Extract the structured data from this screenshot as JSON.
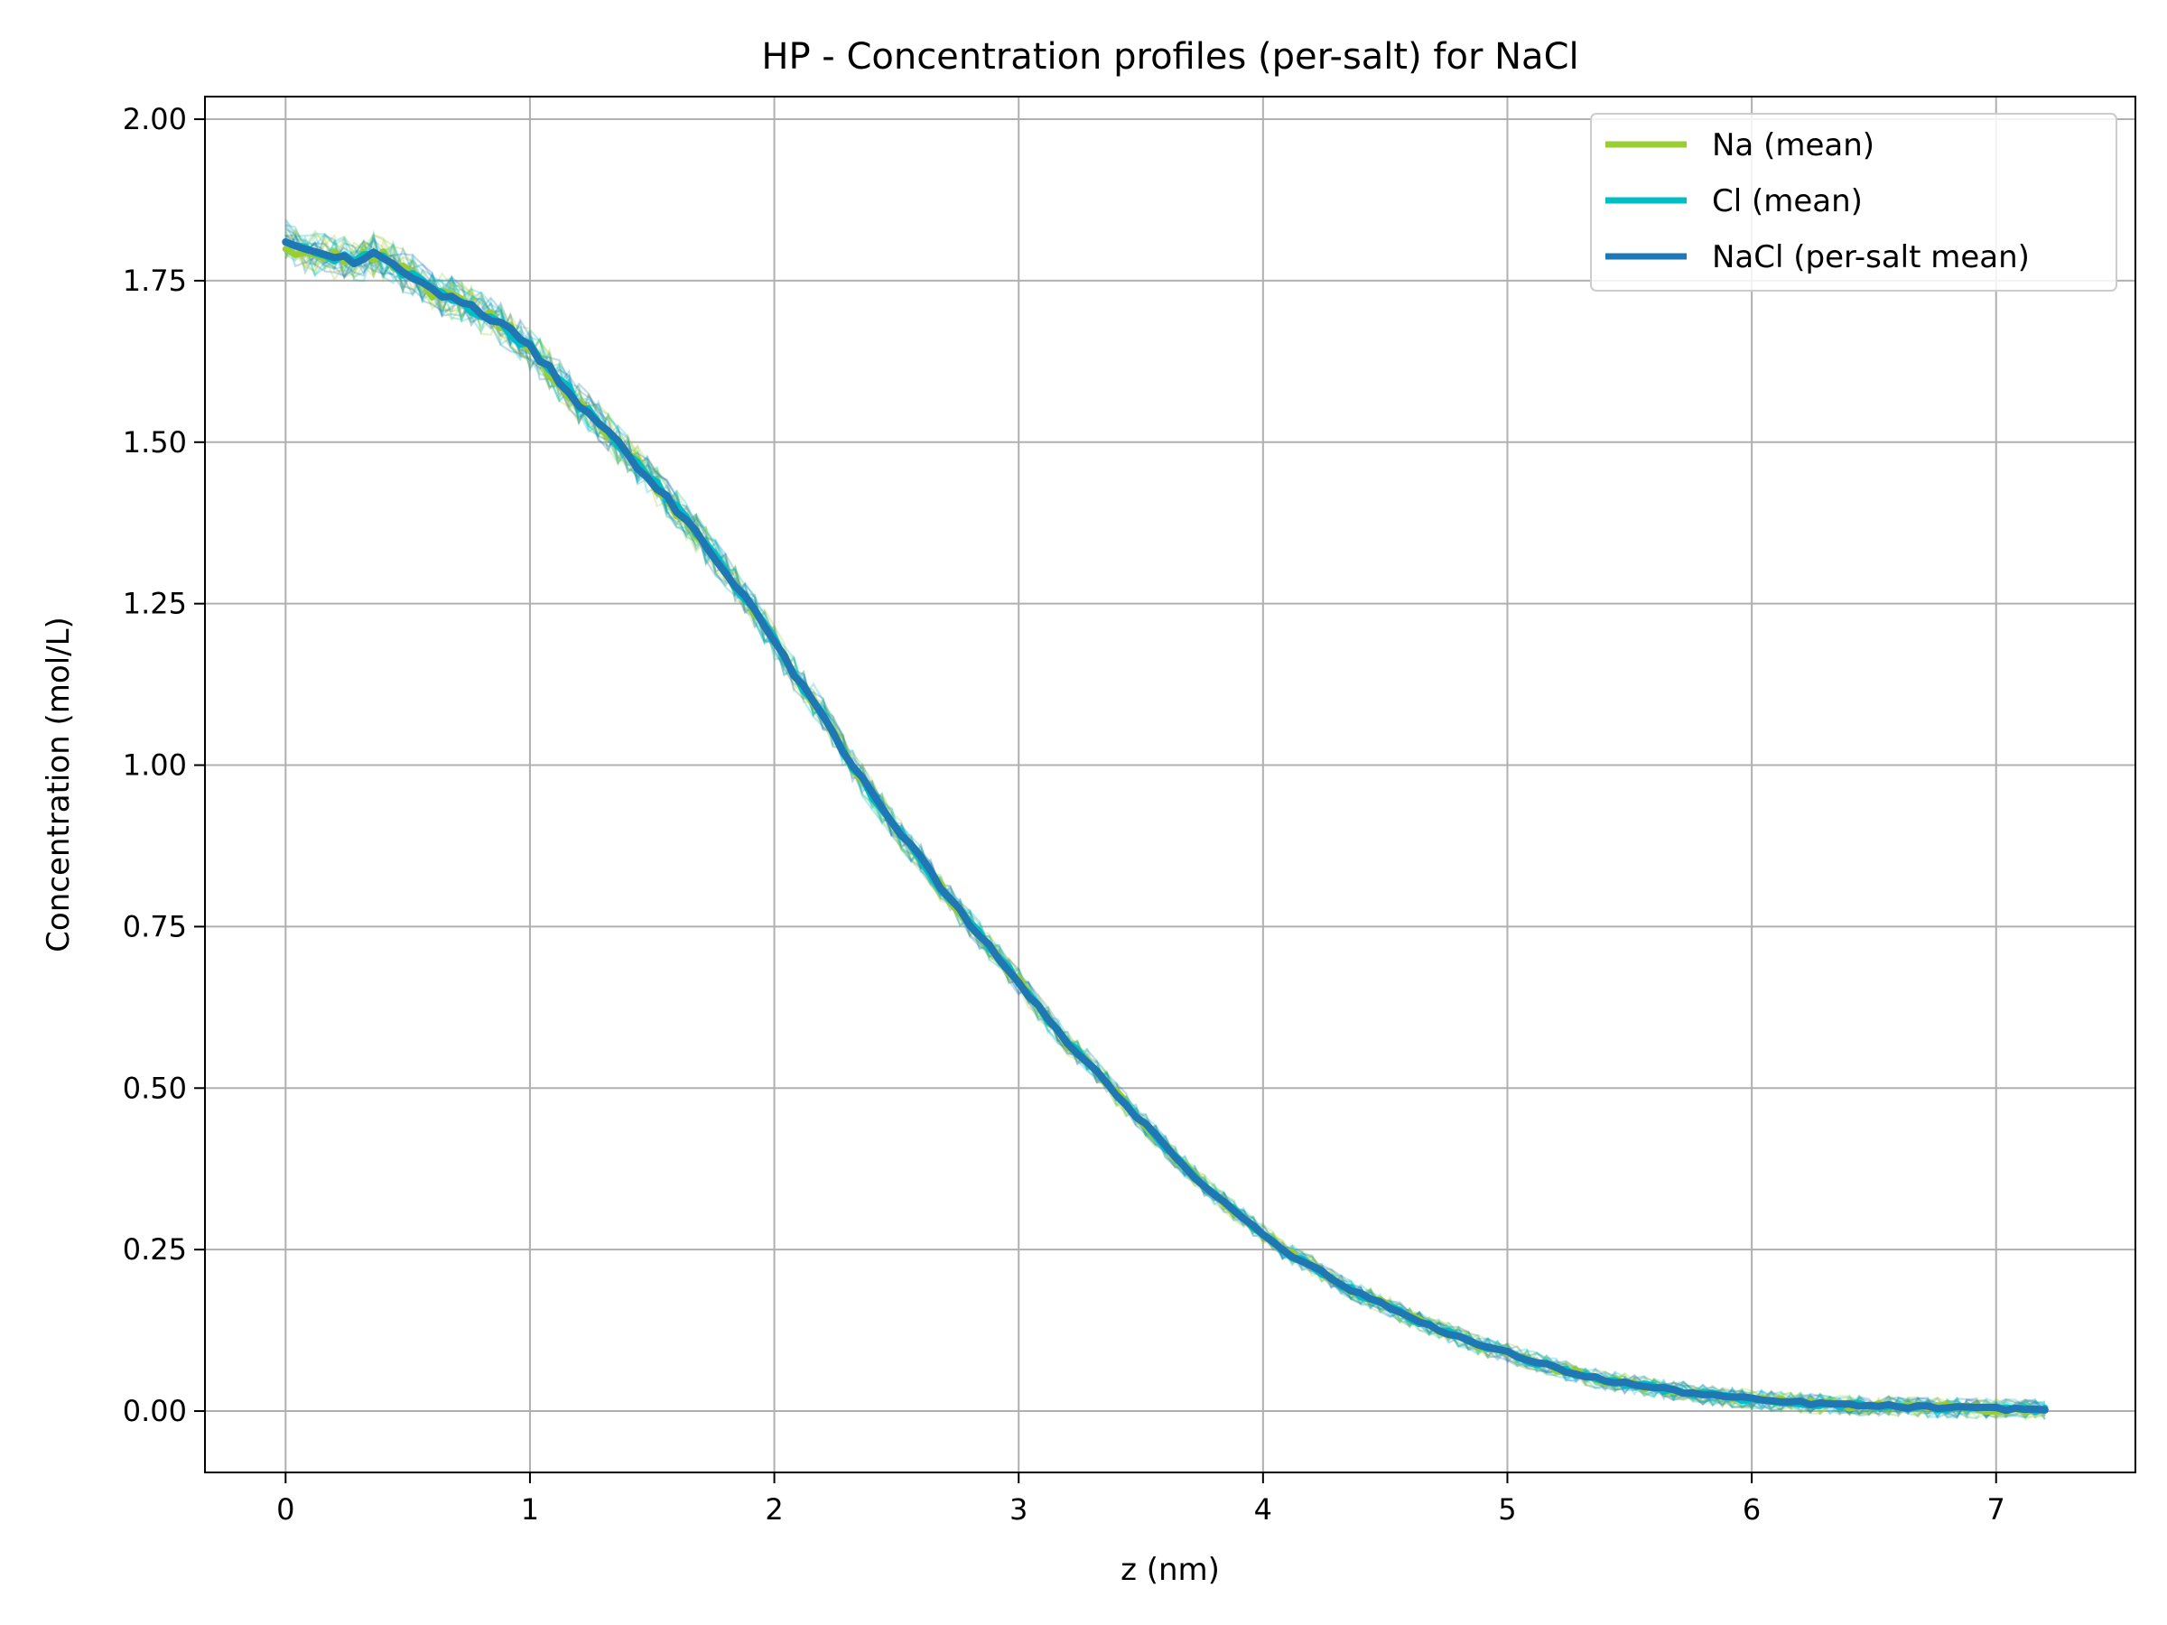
{
  "chart_data": {
    "type": "line",
    "title": "HP - Concentration profiles (per-salt) for NaCl",
    "xlabel": "z (nm)",
    "ylabel": "Concentration (mol/L)",
    "xlim": [
      -0.33,
      7.57
    ],
    "ylim": [
      -0.095,
      2.035
    ],
    "xticks": [
      0,
      1,
      2,
      3,
      4,
      5,
      6,
      7
    ],
    "yticks": [
      0.0,
      0.25,
      0.5,
      0.75,
      1.0,
      1.25,
      1.5,
      1.75,
      2.0
    ],
    "ytick_labels": [
      "0.00",
      "0.25",
      "0.50",
      "0.75",
      "1.00",
      "1.25",
      "1.50",
      "1.75",
      "2.00"
    ],
    "grid": true,
    "legend_position": "top-right",
    "colors": {
      "na": "#9acd32",
      "cl": "#00bfc4",
      "nacl": "#1f77b4",
      "grid": "#b0b0b0"
    },
    "series": [
      {
        "name": "Na (mean)",
        "color": "#9acd32",
        "line_width": "thick"
      },
      {
        "name": "Cl (mean)",
        "color": "#00bfc4",
        "line_width": "thick"
      },
      {
        "name": "NaCl (per-salt mean)",
        "color": "#1f77b4",
        "line_width": "thicker"
      }
    ],
    "main_curve": {
      "x": [
        0.0,
        0.05,
        0.1,
        0.15,
        0.2,
        0.25,
        0.3,
        0.35,
        0.4,
        0.5,
        0.6,
        0.7,
        0.8,
        0.9,
        1.0,
        1.1,
        1.2,
        1.3,
        1.4,
        1.5,
        1.6,
        1.7,
        1.8,
        1.9,
        2.0,
        2.1,
        2.2,
        2.3,
        2.4,
        2.5,
        2.6,
        2.7,
        2.8,
        2.9,
        3.0,
        3.1,
        3.2,
        3.3,
        3.4,
        3.5,
        3.6,
        3.7,
        3.8,
        3.9,
        4.0,
        4.1,
        4.2,
        4.3,
        4.4,
        4.5,
        4.6,
        4.7,
        4.8,
        4.9,
        5.0,
        5.1,
        5.2,
        5.3,
        5.4,
        5.5,
        5.6,
        5.7,
        5.8,
        5.9,
        6.0,
        6.1,
        6.2,
        6.3,
        6.4,
        6.5,
        6.6,
        6.7,
        6.8,
        6.9,
        7.0,
        7.1,
        7.22
      ],
      "y": [
        1.81,
        1.8,
        1.79,
        1.795,
        1.785,
        1.785,
        1.78,
        1.79,
        1.785,
        1.76,
        1.735,
        1.72,
        1.7,
        1.68,
        1.645,
        1.605,
        1.56,
        1.525,
        1.48,
        1.44,
        1.395,
        1.35,
        1.3,
        1.25,
        1.19,
        1.13,
        1.08,
        1.01,
        0.955,
        0.9,
        0.855,
        0.8,
        0.755,
        0.71,
        0.665,
        0.615,
        0.57,
        0.535,
        0.49,
        0.45,
        0.41,
        0.37,
        0.335,
        0.305,
        0.275,
        0.245,
        0.225,
        0.2,
        0.18,
        0.165,
        0.145,
        0.13,
        0.115,
        0.1,
        0.09,
        0.078,
        0.066,
        0.056,
        0.048,
        0.042,
        0.036,
        0.031,
        0.026,
        0.022,
        0.018,
        0.015,
        0.013,
        0.011,
        0.009,
        0.008,
        0.007,
        0.006,
        0.005,
        0.004,
        0.004,
        0.003,
        0.002
      ]
    },
    "replicates": 8
  }
}
